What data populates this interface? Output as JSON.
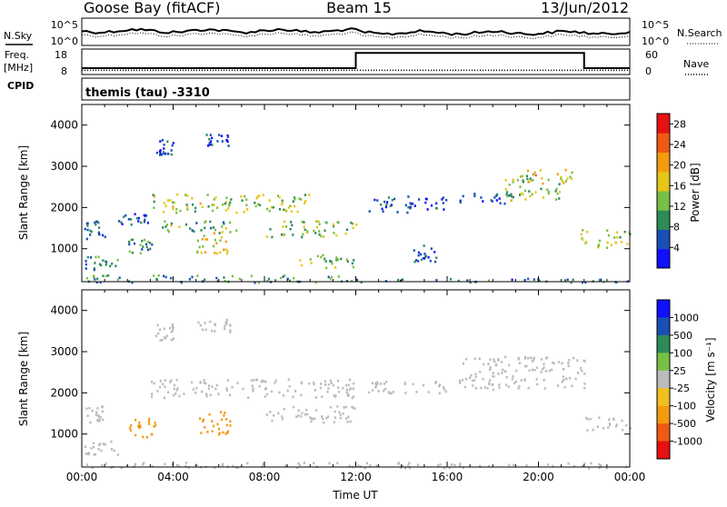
{
  "header": {
    "station": "Goose Bay (fitACF)",
    "beam": "Beam 15",
    "date": "13/Jun/2012"
  },
  "noise_panel": {
    "left_label": "N.Sky",
    "right_label": "N.Search",
    "left_ticks": [
      "10^5",
      "10^0"
    ],
    "right_ticks": [
      "10^5",
      "10^0"
    ]
  },
  "freq_panel": {
    "left_label_1": "Freq.",
    "left_label_2": "[MHz]",
    "right_label": "Nave",
    "left_ticks": [
      "18",
      "8"
    ],
    "right_ticks": [
      "60",
      "0"
    ],
    "freq_mhz": [
      {
        "from_hour": 0,
        "to_hour": 12,
        "value": 10.5
      },
      {
        "from_hour": 12,
        "to_hour": 22,
        "value": 16.5
      },
      {
        "from_hour": 22,
        "to_hour": 24,
        "value": 10.5
      }
    ],
    "nave": 10
  },
  "cpid_panel": {
    "label": "CPID",
    "text": "themis (tau) -3310"
  },
  "colors": {
    "power_scale": [
      "#1010ff",
      "#1a4fb5",
      "#2e8b57",
      "#77c044",
      "#e5c616",
      "#f39a11",
      "#f05a12",
      "#e81010"
    ],
    "velocity_scale": [
      "#e81010",
      "#f05a12",
      "#f39a11",
      "#f0c020",
      "#bbbbbb",
      "#77c044",
      "#2e8b57",
      "#1a4fb5",
      "#1010ff"
    ],
    "ground_scatter": "#bbbbbb"
  },
  "chart_data": [
    {
      "type": "heatmap",
      "title": "Power",
      "xlabel": "",
      "ylabel": "Slant Range [km]",
      "x_unit": "hour UT",
      "xlim": [
        0,
        24
      ],
      "ylim": [
        200,
        4500
      ],
      "yticks": [
        "1000",
        "2000",
        "3000",
        "4000"
      ],
      "colorbar": {
        "label": "Power [dB]",
        "range": [
          0,
          30
        ],
        "ticks": [
          "4",
          "8",
          "12",
          "16",
          "20",
          "24",
          "28"
        ]
      },
      "regions": [
        {
          "t0": 0.1,
          "t1": 1.0,
          "r0": 1200,
          "r1": 1700,
          "value": 8
        },
        {
          "t0": 0.1,
          "t1": 1.6,
          "r0": 500,
          "r1": 850,
          "value": 7
        },
        {
          "t0": 1.5,
          "t1": 3.0,
          "r0": 1600,
          "r1": 1900,
          "value": 6
        },
        {
          "t0": 2.0,
          "t1": 3.2,
          "r0": 900,
          "r1": 1250,
          "value": 9
        },
        {
          "t0": 3.0,
          "t1": 10.0,
          "r0": 1900,
          "r1": 2350,
          "value": 14
        },
        {
          "t0": 3.5,
          "t1": 7.0,
          "r0": 1400,
          "r1": 1700,
          "value": 11
        },
        {
          "t0": 5.0,
          "t1": 6.5,
          "r0": 900,
          "r1": 1500,
          "value": 17
        },
        {
          "t0": 8.0,
          "t1": 12.0,
          "r0": 1300,
          "r1": 1700,
          "value": 13
        },
        {
          "t0": 9.5,
          "t1": 12.0,
          "r0": 550,
          "r1": 900,
          "value": 12
        },
        {
          "t0": 3.2,
          "t1": 4.0,
          "r0": 3300,
          "r1": 3700,
          "value": 4
        },
        {
          "t0": 5.0,
          "t1": 6.5,
          "r0": 3500,
          "r1": 3800,
          "value": 4
        },
        {
          "t0": 0.1,
          "t1": 12.0,
          "r0": 200,
          "r1": 380,
          "value": 10
        },
        {
          "t0": 12.0,
          "t1": 24.0,
          "r0": 200,
          "r1": 300,
          "value": 8
        },
        {
          "t0": 16.5,
          "t1": 18.8,
          "r0": 2100,
          "r1": 2400,
          "value": 6
        },
        {
          "t0": 18.5,
          "t1": 21.0,
          "r0": 2200,
          "r1": 2800,
          "value": 13
        },
        {
          "t0": 19.5,
          "t1": 21.5,
          "r0": 2600,
          "r1": 2950,
          "value": 18
        },
        {
          "t0": 21.8,
          "t1": 24.0,
          "r0": 1050,
          "r1": 1500,
          "value": 14
        },
        {
          "t0": 12.5,
          "t1": 16.0,
          "r0": 1900,
          "r1": 2300,
          "value": 4
        },
        {
          "t0": 14.5,
          "t1": 15.5,
          "r0": 700,
          "r1": 1100,
          "value": 5
        }
      ]
    },
    {
      "type": "heatmap",
      "title": "Velocity",
      "xlabel": "Time UT",
      "ylabel": "Slant Range [km]",
      "x_unit": "hour UT",
      "xlim": [
        0,
        24
      ],
      "ylim": [
        200,
        4500
      ],
      "xticks": [
        "00:00",
        "04:00",
        "08:00",
        "12:00",
        "16:00",
        "20:00",
        "00:00"
      ],
      "yticks": [
        "1000",
        "2000",
        "3000",
        "4000"
      ],
      "colorbar": {
        "label": "Velocity [m s⁻¹]",
        "ticks": [
          "1000",
          "500",
          "100",
          "25",
          "-25",
          "-100",
          "-500",
          "-1000"
        ]
      },
      "regions": [
        {
          "t0": 0.1,
          "t1": 1.0,
          "r0": 1300,
          "r1": 1700,
          "value": 0
        },
        {
          "t0": 0.1,
          "t1": 1.6,
          "r0": 500,
          "r1": 850,
          "value": 0
        },
        {
          "t0": 2.0,
          "t1": 3.2,
          "r0": 950,
          "r1": 1400,
          "value": -300
        },
        {
          "t0": 3.0,
          "t1": 12.0,
          "r0": 1900,
          "r1": 2350,
          "value": 0
        },
        {
          "t0": 5.0,
          "t1": 6.5,
          "r0": 1000,
          "r1": 1600,
          "value": -300
        },
        {
          "t0": 8.0,
          "t1": 12.0,
          "r0": 1300,
          "r1": 1700,
          "value": 0
        },
        {
          "t0": 3.2,
          "t1": 4.0,
          "r0": 3300,
          "r1": 3700,
          "value": 0
        },
        {
          "t0": 5.0,
          "t1": 6.5,
          "r0": 3500,
          "r1": 3800,
          "value": 0
        },
        {
          "t0": 0.1,
          "t1": 24.0,
          "r0": 200,
          "r1": 330,
          "value": 0
        },
        {
          "t0": 12.2,
          "t1": 16.0,
          "r0": 2000,
          "r1": 2300,
          "value": 0
        },
        {
          "t0": 16.5,
          "t1": 22.0,
          "r0": 2100,
          "r1": 2900,
          "value": 0
        },
        {
          "t0": 22.0,
          "t1": 24.0,
          "r0": 1100,
          "r1": 1450,
          "value": 0
        }
      ]
    }
  ]
}
